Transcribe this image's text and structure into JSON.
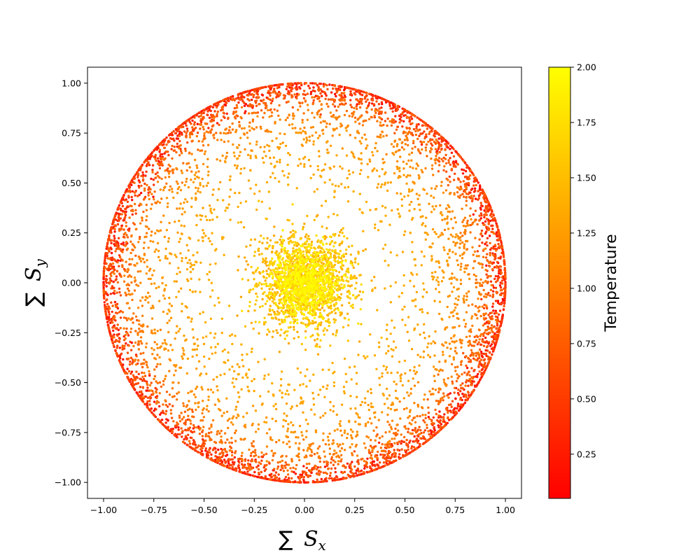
{
  "chart_data": {
    "type": "scatter",
    "title": "",
    "xlabel": "∑ S_x",
    "ylabel": "∑ S_y",
    "xlim": [
      -1.08,
      1.08
    ],
    "ylim": [
      -1.08,
      1.08
    ],
    "x_ticks": [
      "−1.00",
      "−0.75",
      "−0.50",
      "−0.25",
      "0.00",
      "0.25",
      "0.50",
      "0.75",
      "1.00"
    ],
    "y_ticks": [
      "−1.00",
      "−0.75",
      "−0.50",
      "−0.25",
      "0.00",
      "0.25",
      "0.50",
      "0.75",
      "1.00"
    ],
    "grid": false,
    "colorbar": {
      "label": "Temperature",
      "range": [
        0.05,
        2.0
      ],
      "ticks": [
        "0.25",
        "0.50",
        "0.75",
        "1.00",
        "1.25",
        "1.50",
        "1.75",
        "2.00"
      ],
      "colormap": "autumn",
      "color_low": "#ff0000",
      "color_high": "#ffff00"
    },
    "point_color_by": "Temperature",
    "description_of_distribution": {
      "core_cluster": {
        "center": [
          0.0,
          0.0
        ],
        "radius": 0.25,
        "temperature_range": [
          1.4,
          2.0
        ]
      },
      "ring_shells": "magnetization magnitude decreases as temperature increases; low-temperature points lie near radius 0.95-1.0",
      "max_radius": 1.0
    }
  }
}
